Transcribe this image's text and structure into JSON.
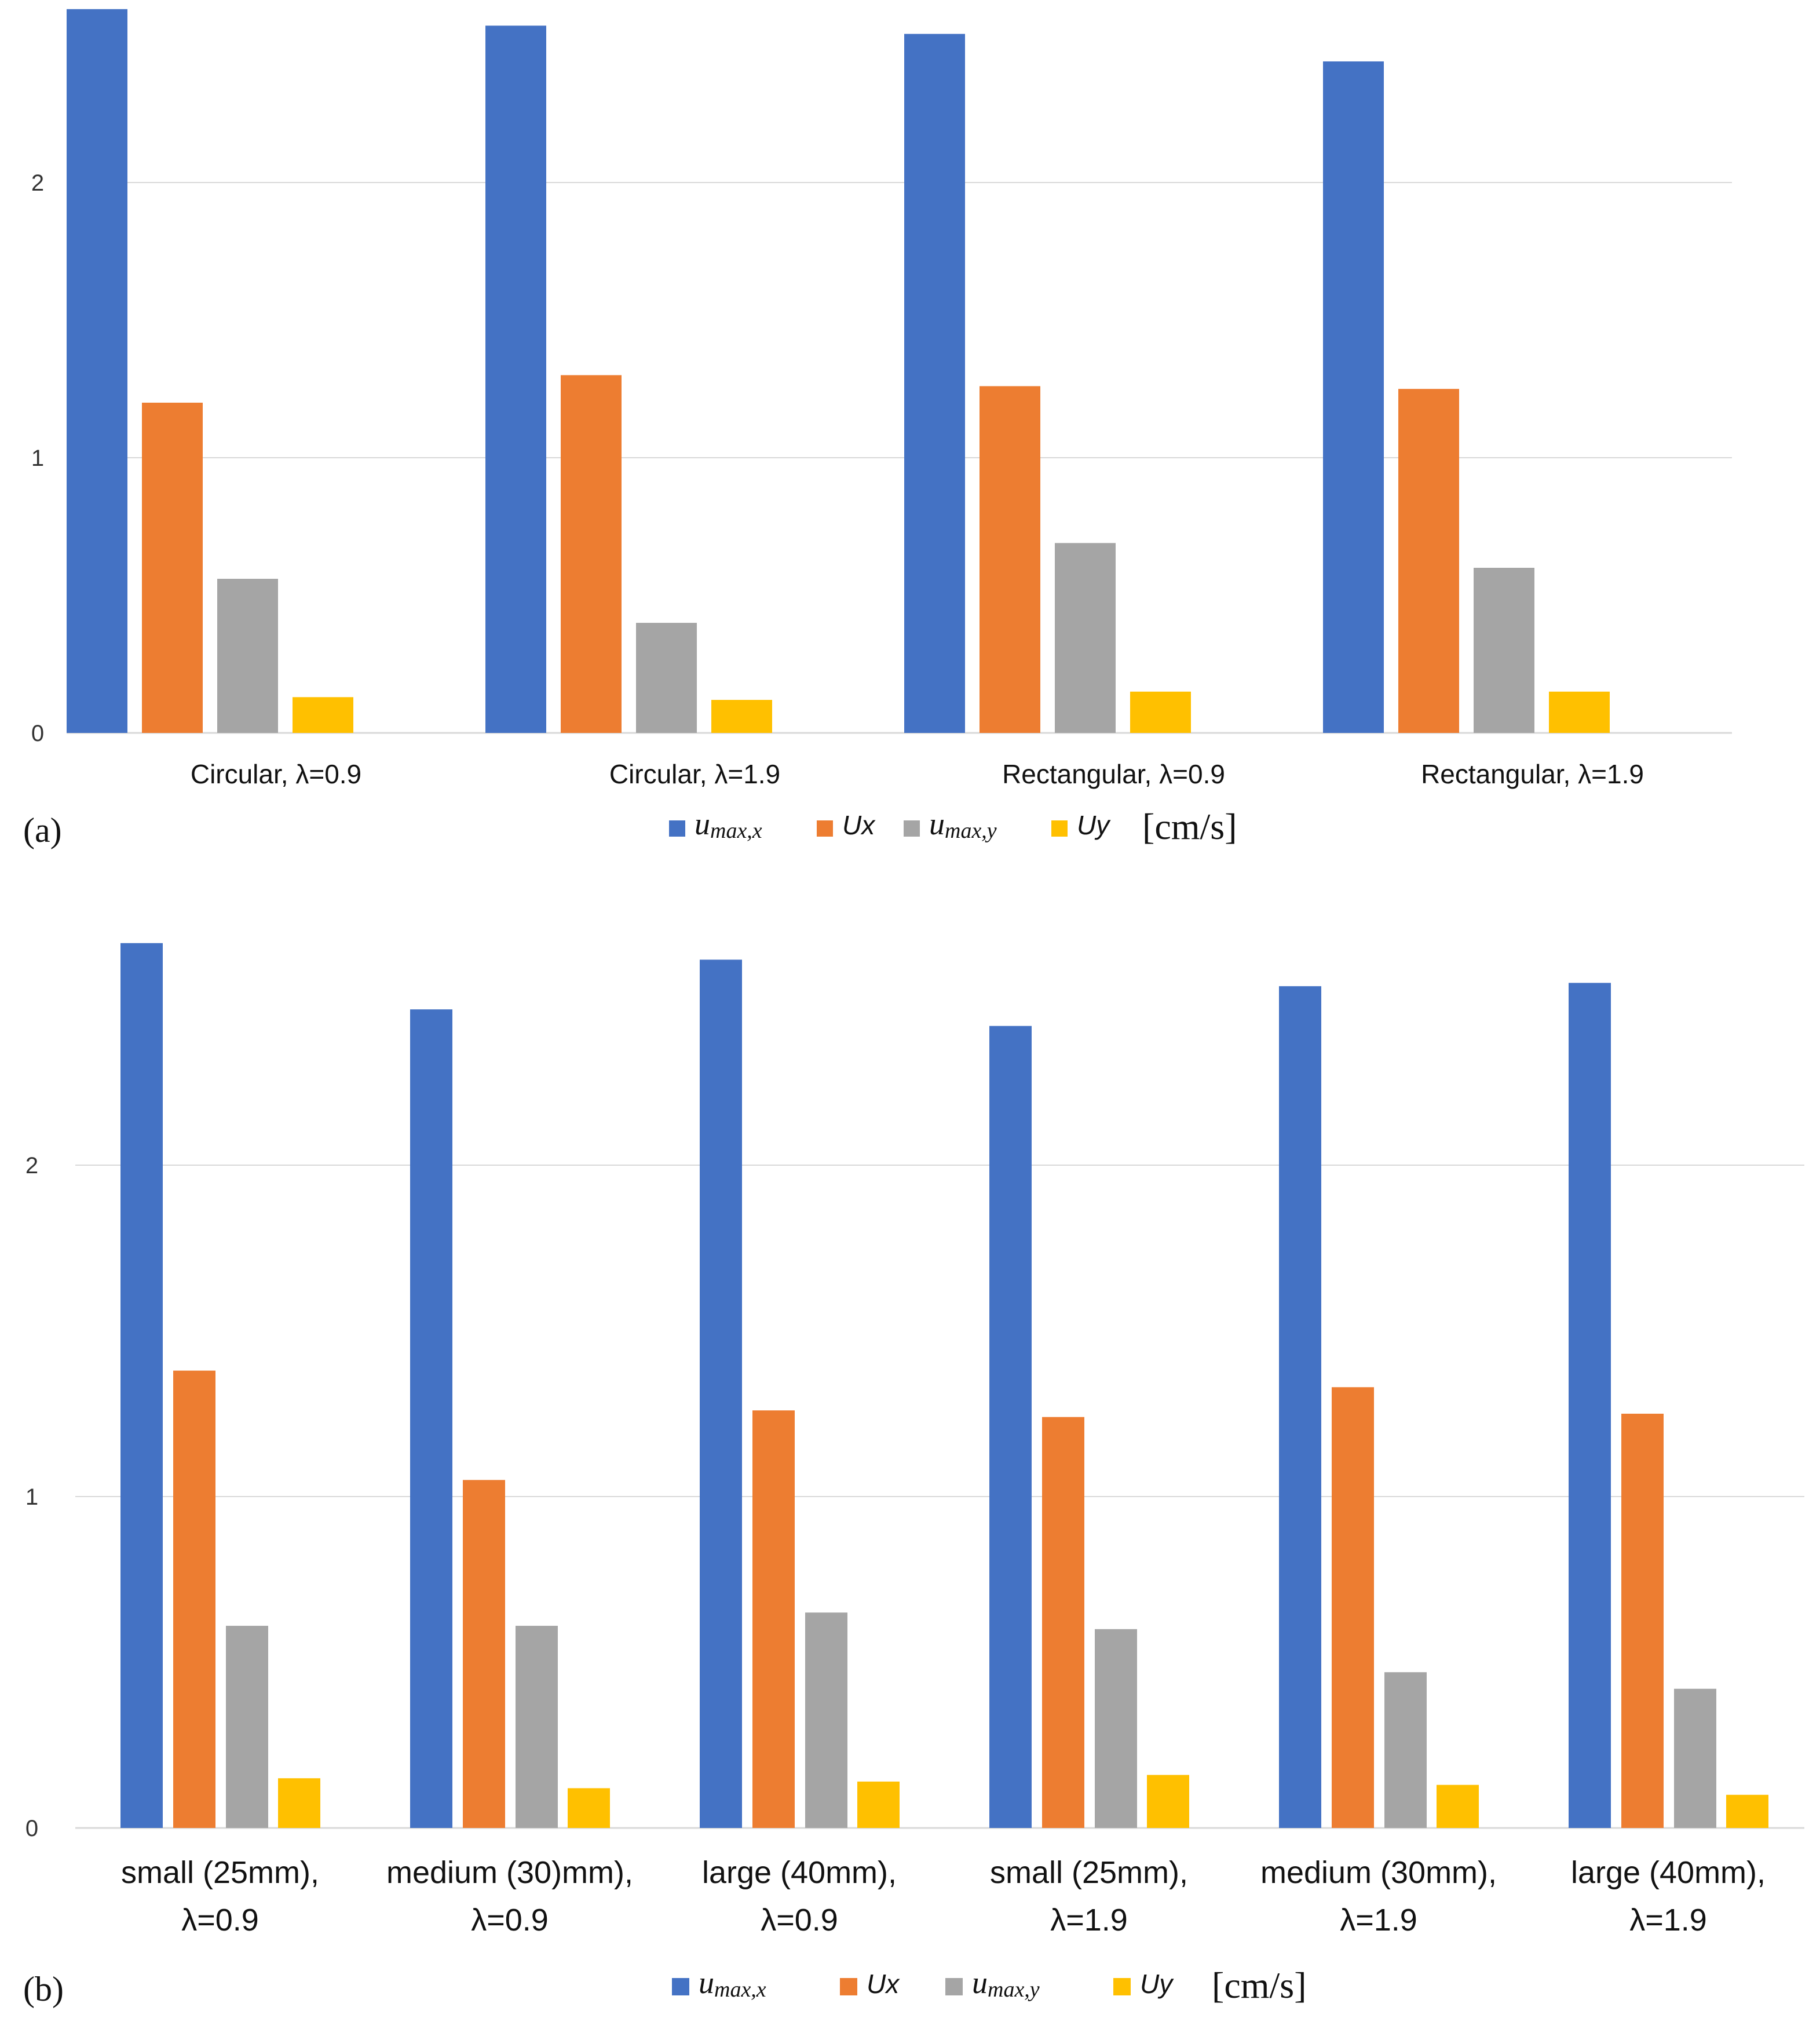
{
  "chart_data": [
    {
      "type": "bar",
      "panel_label": "(a)",
      "categories": [
        "Circular, λ=0.9",
        "Circular, λ=1.9",
        "Rectangular, λ=0.9",
        "Rectangular, λ=1.9"
      ],
      "series": [
        {
          "name": "u_max,x",
          "legend_main": "u",
          "legend_sub": "max,x",
          "color": "#4472C4",
          "values": [
            2.63,
            2.57,
            2.54,
            2.44
          ]
        },
        {
          "name": "Ux",
          "legend_main": "Ux",
          "legend_sub": "",
          "color": "#ED7D31",
          "values": [
            1.2,
            1.3,
            1.26,
            1.25
          ]
        },
        {
          "name": "u_max,y",
          "legend_main": "u",
          "legend_sub": "max,y",
          "color": "#A5A5A5",
          "values": [
            0.56,
            0.4,
            0.69,
            0.6
          ]
        },
        {
          "name": "Uy",
          "legend_main": "Uy",
          "legend_sub": "",
          "color": "#FFC000",
          "values": [
            0.13,
            0.12,
            0.15,
            0.15
          ]
        }
      ],
      "y_ticks": [
        "0",
        "1",
        "2"
      ],
      "ylim": [
        0,
        2.63
      ],
      "unit": "[cm/s]",
      "grid": true,
      "legend": "bottom"
    },
    {
      "type": "bar",
      "panel_label": "(b)",
      "categories": [
        [
          "small (25mm),",
          "λ=0.9"
        ],
        [
          "medium (30)mm),",
          "λ=0.9"
        ],
        [
          "large (40mm),",
          "λ=0.9"
        ],
        [
          "small (25mm),",
          "λ=1.9"
        ],
        [
          "medium (30mm),",
          "λ=1.9"
        ],
        [
          "large (40mm),",
          "λ=1.9"
        ]
      ],
      "series": [
        {
          "name": "u_max,x",
          "legend_main": "u",
          "legend_sub": "max,x",
          "color": "#4472C4",
          "values": [
            2.67,
            2.47,
            2.62,
            2.42,
            2.54,
            2.55
          ]
        },
        {
          "name": "Ux",
          "legend_main": "Ux",
          "legend_sub": "",
          "color": "#ED7D31",
          "values": [
            1.38,
            1.05,
            1.26,
            1.24,
            1.33,
            1.25
          ]
        },
        {
          "name": "u_max,y",
          "legend_main": "u",
          "legend_sub": "max,y",
          "color": "#A5A5A5",
          "values": [
            0.61,
            0.61,
            0.65,
            0.6,
            0.47,
            0.42
          ]
        },
        {
          "name": "Uy",
          "legend_main": "Uy",
          "legend_sub": "",
          "color": "#FFC000",
          "values": [
            0.15,
            0.12,
            0.14,
            0.16,
            0.13,
            0.1
          ]
        }
      ],
      "y_ticks": [
        "0",
        "1",
        "2"
      ],
      "ylim": [
        0,
        2.67
      ],
      "unit": "[cm/s]",
      "grid": true,
      "legend": "bottom"
    }
  ]
}
